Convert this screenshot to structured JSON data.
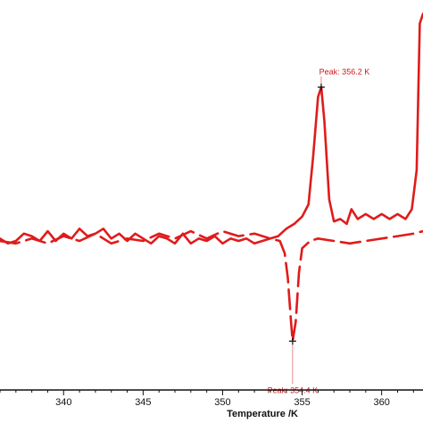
{
  "chart_data": {
    "type": "line",
    "xlabel": "Temperature /K",
    "ylabel": "",
    "xlim": [
      336.0,
      362.6
    ],
    "ylim": [
      -3.0,
      4.8
    ],
    "x_ticks": [
      "340",
      "345",
      "350",
      "355",
      "360"
    ],
    "grid": false,
    "legend": "none",
    "series": [
      {
        "style": "solid",
        "color": "#e01b1b",
        "points": [
          [
            336.0,
            0.1
          ],
          [
            336.5,
            0.0
          ],
          [
            337.0,
            0.05
          ],
          [
            337.5,
            0.2
          ],
          [
            338.0,
            0.15
          ],
          [
            338.5,
            0.05
          ],
          [
            339.0,
            0.25
          ],
          [
            339.5,
            0.05
          ],
          [
            340.0,
            0.2
          ],
          [
            340.5,
            0.1
          ],
          [
            341.0,
            0.3
          ],
          [
            341.5,
            0.15
          ],
          [
            342.0,
            0.2
          ],
          [
            342.5,
            0.3
          ],
          [
            343.0,
            0.1
          ],
          [
            343.5,
            0.2
          ],
          [
            344.0,
            0.05
          ],
          [
            344.5,
            0.2
          ],
          [
            345.0,
            0.1
          ],
          [
            345.5,
            0.0
          ],
          [
            346.0,
            0.15
          ],
          [
            346.5,
            0.1
          ],
          [
            347.0,
            0.0
          ],
          [
            347.5,
            0.2
          ],
          [
            348.0,
            0.0
          ],
          [
            348.5,
            0.1
          ],
          [
            349.0,
            0.05
          ],
          [
            349.5,
            0.15
          ],
          [
            350.0,
            0.0
          ],
          [
            350.5,
            0.1
          ],
          [
            351.0,
            0.05
          ],
          [
            351.5,
            0.1
          ],
          [
            352.0,
            0.0
          ],
          [
            352.5,
            0.05
          ],
          [
            353.0,
            0.1
          ],
          [
            353.5,
            0.15
          ],
          [
            354.0,
            0.3
          ],
          [
            354.5,
            0.4
          ],
          [
            355.0,
            0.55
          ],
          [
            355.4,
            0.8
          ],
          [
            355.7,
            1.8
          ],
          [
            356.0,
            3.0
          ],
          [
            356.2,
            3.2
          ],
          [
            356.4,
            2.5
          ],
          [
            356.7,
            0.9
          ],
          [
            357.0,
            0.45
          ],
          [
            357.4,
            0.5
          ],
          [
            357.8,
            0.4
          ],
          [
            358.1,
            0.7
          ],
          [
            358.5,
            0.5
          ],
          [
            359.0,
            0.6
          ],
          [
            359.5,
            0.5
          ],
          [
            360.0,
            0.6
          ],
          [
            360.5,
            0.5
          ],
          [
            361.0,
            0.6
          ],
          [
            361.5,
            0.5
          ],
          [
            361.9,
            0.7
          ],
          [
            362.2,
            1.5
          ],
          [
            362.4,
            4.5
          ],
          [
            362.6,
            4.7
          ]
        ]
      },
      {
        "style": "dashed",
        "color": "#e01b1b",
        "points": [
          [
            336.0,
            0.05
          ],
          [
            337.0,
            0.0
          ],
          [
            338.0,
            0.1
          ],
          [
            339.0,
            0.0
          ],
          [
            340.0,
            0.15
          ],
          [
            341.0,
            0.05
          ],
          [
            342.0,
            0.2
          ],
          [
            343.0,
            0.0
          ],
          [
            344.0,
            0.1
          ],
          [
            345.0,
            0.05
          ],
          [
            346.0,
            0.2
          ],
          [
            347.0,
            0.1
          ],
          [
            348.0,
            0.25
          ],
          [
            349.0,
            0.1
          ],
          [
            350.0,
            0.25
          ],
          [
            351.0,
            0.15
          ],
          [
            352.0,
            0.2
          ],
          [
            353.0,
            0.1
          ],
          [
            353.6,
            0.05
          ],
          [
            353.9,
            -0.2
          ],
          [
            354.1,
            -0.7
          ],
          [
            354.3,
            -1.6
          ],
          [
            354.4,
            -2.0
          ],
          [
            354.6,
            -1.6
          ],
          [
            354.8,
            -0.6
          ],
          [
            355.0,
            -0.1
          ],
          [
            355.5,
            0.05
          ],
          [
            356.0,
            0.1
          ],
          [
            357.0,
            0.05
          ],
          [
            358.0,
            0.0
          ],
          [
            359.0,
            0.05
          ],
          [
            360.0,
            0.1
          ],
          [
            361.0,
            0.15
          ],
          [
            362.0,
            0.2
          ],
          [
            362.6,
            0.25
          ]
        ]
      }
    ],
    "annotations": [
      {
        "text": "Peak: 356.2 K",
        "x": 356.2,
        "y": 3.2,
        "position": "above"
      },
      {
        "text": "Peak: 354.4 K",
        "x": 354.4,
        "y": -2.0,
        "position": "below"
      }
    ]
  }
}
